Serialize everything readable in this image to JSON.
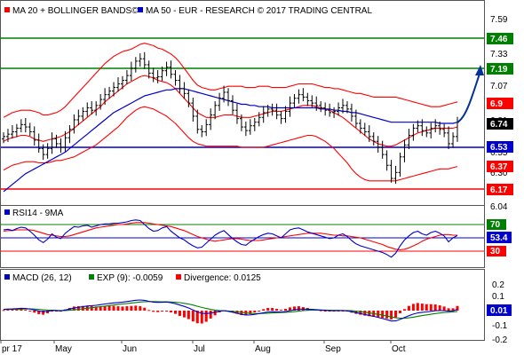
{
  "colors": {
    "price": "#000000",
    "ma20": "#ff0000",
    "bollinger": "#ff0000",
    "ma50": "#0000cc",
    "resistance": "#008000",
    "support_blue": "#0000cc",
    "support_red": "#ff0000",
    "rsi": "#0000cc",
    "rsi_ma": "#ff0000",
    "macd": "#0000cc",
    "signal": "#008000",
    "divergence": "#ff0000",
    "arrow": "#003399"
  },
  "legend": {
    "main": [
      {
        "marker_color": "#ff0000",
        "text": "MA 20 + BOLLINGER BANDS©"
      },
      {
        "marker_color": "#0000cc",
        "text": "MA 50 - EUR - RESEARCH © 2017 TRADING CENTRAL"
      }
    ],
    "rsi": [
      {
        "marker_color": "#0000cc",
        "text": "RSI14 - 9MA"
      }
    ],
    "macd": [
      {
        "marker_color": "#0000cc",
        "text": "MACD (26, 12)"
      },
      {
        "marker_color": "#008000",
        "text": "EXP (9): -0.0059"
      },
      {
        "marker_color": "#ff0000",
        "text": "Divergence: 0.0125"
      }
    ]
  },
  "chart_data": [
    {
      "type": "candlestick",
      "panel": "price",
      "x_labels": [
        "pr 17",
        "May",
        "Jun",
        "Jul",
        "Aug",
        "Sep",
        "Oct"
      ],
      "y_ticks": [
        "7.59",
        "7.33",
        "7.07",
        "6.81",
        "6.55",
        "6.30",
        "6.04"
      ],
      "ylim": [
        6.04,
        7.62
      ],
      "levels": [
        {
          "value": 7.46,
          "label": "7.46",
          "color": "#008000",
          "badge_bg": "#008000"
        },
        {
          "value": 7.19,
          "label": "7.19",
          "color": "#008000",
          "badge_bg": "#008000"
        },
        {
          "value": 6.53,
          "label": "6.53",
          "color": "#0000cc",
          "badge_bg": "#0000cc"
        },
        {
          "value": 6.17,
          "label": "6.17",
          "color": "#ff0000",
          "badge_bg": "#ff0000"
        }
      ],
      "markers": [
        {
          "value": 6.9,
          "label": "6.9",
          "badge_bg": "#ff0000"
        },
        {
          "value": 6.74,
          "label": "6.74",
          "badge_bg": "#000000"
        },
        {
          "value": 6.37,
          "label": "6.37",
          "badge_bg": "#ff0000"
        }
      ],
      "close": [
        6.62,
        6.64,
        6.66,
        6.69,
        6.72,
        6.7,
        6.66,
        6.59,
        6.52,
        6.47,
        6.52,
        6.6,
        6.56,
        6.53,
        6.61,
        6.68,
        6.76,
        6.79,
        6.83,
        6.86,
        6.84,
        6.88,
        6.93,
        6.97,
        7.0,
        7.03,
        7.06,
        7.09,
        7.13,
        7.19,
        7.25,
        7.27,
        7.22,
        7.15,
        7.11,
        7.12,
        7.17,
        7.2,
        7.14,
        7.09,
        7.02,
        6.98,
        6.9,
        6.79,
        6.68,
        6.66,
        6.72,
        6.8,
        6.88,
        6.94,
        6.99,
        6.92,
        6.84,
        6.77,
        6.7,
        6.67,
        6.71,
        6.74,
        6.78,
        6.82,
        6.85,
        6.84,
        6.8,
        6.77,
        6.83,
        6.9,
        6.94,
        6.97,
        6.95,
        6.92,
        6.9,
        6.88,
        6.86,
        6.84,
        6.82,
        6.83,
        6.86,
        6.88,
        6.85,
        6.79,
        6.73,
        6.69,
        6.66,
        6.62,
        6.58,
        6.53,
        6.47,
        6.38,
        6.27,
        6.32,
        6.45,
        6.55,
        6.63,
        6.69,
        6.71,
        6.67,
        6.65,
        6.69,
        6.71,
        6.68,
        6.65,
        6.56,
        6.62,
        6.74
      ],
      "ma20": [
        6.58,
        6.6,
        6.61,
        6.62,
        6.63,
        6.63,
        6.62,
        6.6,
        6.59,
        6.58,
        6.59,
        6.6,
        6.61,
        6.62,
        6.64,
        6.66,
        6.69,
        6.72,
        6.75,
        6.78,
        6.81,
        6.84,
        6.87,
        6.91,
        6.94,
        6.97,
        7.0,
        7.03,
        7.06,
        7.08,
        7.1,
        7.12,
        7.13,
        7.12,
        7.11,
        7.09,
        7.08,
        7.07,
        7.05,
        7.02,
        6.98,
        6.94,
        6.9,
        6.86,
        6.82,
        6.8,
        6.78,
        6.78,
        6.78,
        6.79,
        6.8,
        6.8,
        6.8,
        6.79,
        6.78,
        6.78,
        6.78,
        6.79,
        6.8,
        6.81,
        6.82,
        6.83,
        6.83,
        6.83,
        6.84,
        6.85,
        6.86,
        6.87,
        6.88,
        6.88,
        6.88,
        6.87,
        6.86,
        6.85,
        6.84,
        6.82,
        6.8,
        6.78,
        6.75,
        6.72,
        6.69,
        6.66,
        6.63,
        6.6,
        6.58,
        6.56,
        6.55,
        6.54,
        6.54,
        6.55,
        6.57,
        6.59,
        6.61,
        6.63,
        6.65,
        6.66,
        6.67,
        6.68,
        6.69,
        6.69,
        6.69,
        6.69,
        6.69,
        6.7
      ],
      "bb_upper": [
        6.78,
        6.8,
        6.82,
        6.83,
        6.84,
        6.84,
        6.84,
        6.83,
        6.82,
        6.8,
        6.8,
        6.81,
        6.82,
        6.84,
        6.87,
        6.91,
        6.95,
        6.99,
        7.03,
        7.07,
        7.11,
        7.15,
        7.19,
        7.23,
        7.26,
        7.29,
        7.31,
        7.33,
        7.34,
        7.35,
        7.37,
        7.39,
        7.4,
        7.39,
        7.38,
        7.36,
        7.35,
        7.33,
        7.31,
        7.28,
        7.24,
        7.19,
        7.14,
        7.09,
        7.05,
        7.03,
        7.02,
        7.01,
        7.01,
        7.02,
        7.03,
        7.04,
        7.04,
        7.04,
        7.04,
        7.03,
        7.03,
        7.03,
        7.04,
        7.04,
        7.04,
        7.03,
        7.03,
        7.03,
        7.03,
        7.04,
        7.05,
        7.06,
        7.06,
        7.06,
        7.06,
        7.05,
        7.04,
        7.03,
        7.03,
        7.02,
        7.02,
        7.01,
        7.0,
        6.99,
        6.98,
        6.98,
        6.97,
        6.96,
        6.95,
        6.95,
        6.95,
        6.95,
        6.95,
        6.95,
        6.94,
        6.93,
        6.92,
        6.91,
        6.9,
        6.89,
        6.88,
        6.87,
        6.87,
        6.87,
        6.88,
        6.89,
        6.9,
        6.91
      ],
      "bb_lower": [
        6.34,
        6.36,
        6.38,
        6.39,
        6.4,
        6.41,
        6.41,
        6.41,
        6.4,
        6.4,
        6.4,
        6.41,
        6.42,
        6.42,
        6.43,
        6.44,
        6.45,
        6.47,
        6.49,
        6.51,
        6.53,
        6.55,
        6.58,
        6.61,
        6.64,
        6.67,
        6.7,
        6.74,
        6.78,
        6.81,
        6.84,
        6.86,
        6.87,
        6.86,
        6.85,
        6.83,
        6.81,
        6.79,
        6.76,
        6.73,
        6.69,
        6.65,
        6.61,
        6.58,
        6.56,
        6.55,
        6.54,
        6.54,
        6.54,
        6.54,
        6.54,
        6.54,
        6.54,
        6.54,
        6.53,
        6.53,
        6.53,
        6.53,
        6.53,
        6.53,
        6.54,
        6.55,
        6.56,
        6.57,
        6.58,
        6.59,
        6.6,
        6.61,
        6.62,
        6.63,
        6.63,
        6.62,
        6.6,
        6.58,
        6.55,
        6.52,
        6.48,
        6.44,
        6.4,
        6.35,
        6.31,
        6.28,
        6.26,
        6.25,
        6.25,
        6.25,
        6.25,
        6.25,
        6.25,
        6.25,
        6.26,
        6.27,
        6.28,
        6.29,
        6.3,
        6.31,
        6.32,
        6.33,
        6.34,
        6.35,
        6.35,
        6.35,
        6.36,
        6.37
      ],
      "ma50": [
        6.16,
        6.19,
        6.22,
        6.25,
        6.28,
        6.31,
        6.33,
        6.35,
        6.37,
        6.39,
        6.41,
        6.43,
        6.45,
        6.47,
        6.49,
        6.52,
        6.55,
        6.58,
        6.61,
        6.64,
        6.67,
        6.7,
        6.73,
        6.76,
        6.79,
        6.82,
        6.84,
        6.86,
        6.88,
        6.9,
        6.92,
        6.94,
        6.96,
        6.97,
        6.98,
        6.99,
        7.0,
        7.01,
        7.01,
        7.02,
        7.02,
        7.02,
        7.01,
        7.0,
        6.99,
        6.98,
        6.97,
        6.96,
        6.95,
        6.94,
        6.93,
        6.92,
        6.91,
        6.9,
        6.89,
        6.89,
        6.88,
        6.88,
        6.87,
        6.87,
        6.87,
        6.86,
        6.86,
        6.86,
        6.86,
        6.86,
        6.86,
        6.86,
        6.86,
        6.86,
        6.86,
        6.86,
        6.85,
        6.85,
        6.85,
        6.84,
        6.84,
        6.83,
        6.83,
        6.82,
        6.82,
        6.81,
        6.8,
        6.79,
        6.78,
        6.77,
        6.76,
        6.75,
        6.74,
        6.74,
        6.74,
        6.74,
        6.74,
        6.74,
        6.74,
        6.74,
        6.74,
        6.74,
        6.74,
        6.73,
        6.73,
        6.73,
        6.73,
        6.74
      ],
      "forecast_arrow": {
        "from": 6.74,
        "to": 7.19
      },
      "current_label": "6.74"
    },
    {
      "type": "line",
      "panel": "rsi",
      "y_ticks": [
        "70",
        "30"
      ],
      "ylim": [
        13,
        87
      ],
      "levels": [
        {
          "value": 70,
          "label": "70",
          "color": "#008000",
          "badge_bg": "#008000"
        },
        {
          "value": 53.4,
          "label": "53.4",
          "color": "#0000cc",
          "badge_bg": "#0000cc"
        },
        {
          "value": 30,
          "label": "30",
          "color": "#ff0000",
          "badge_bg": "#ff0000"
        }
      ],
      "rsi": [
        62,
        63,
        61,
        64,
        66,
        65,
        60,
        54,
        47,
        43,
        48,
        56,
        51,
        49,
        57,
        62,
        67,
        66,
        68,
        69,
        66,
        68,
        70,
        71,
        71,
        72,
        72,
        73,
        74,
        76,
        77,
        76,
        70,
        64,
        60,
        61,
        65,
        67,
        60,
        55,
        50,
        47,
        42,
        38,
        35,
        36,
        42,
        48,
        54,
        58,
        61,
        55,
        49,
        44,
        40,
        39,
        44,
        48,
        52,
        55,
        57,
        56,
        53,
        50,
        56,
        62,
        64,
        65,
        62,
        59,
        57,
        55,
        53,
        51,
        49,
        50,
        54,
        56,
        52,
        46,
        41,
        38,
        36,
        34,
        32,
        30,
        28,
        25,
        21,
        27,
        38,
        47,
        53,
        58,
        60,
        56,
        54,
        58,
        60,
        57,
        53,
        44,
        50,
        53.4
      ],
      "rsi_ma": [
        60,
        61,
        61,
        62,
        62,
        62,
        62,
        61,
        59,
        57,
        55,
        54,
        53,
        52,
        52,
        53,
        55,
        57,
        59,
        61,
        63,
        65,
        66,
        67,
        68,
        69,
        70,
        70,
        71,
        72,
        73,
        73,
        73,
        72,
        71,
        70,
        69,
        68,
        67,
        65,
        63,
        61,
        58,
        55,
        52,
        50,
        48,
        46,
        45,
        46,
        47,
        48,
        49,
        49,
        48,
        47,
        46,
        46,
        46,
        47,
        48,
        49,
        50,
        51,
        52,
        53,
        54,
        55,
        56,
        57,
        57,
        57,
        57,
        56,
        55,
        54,
        54,
        53,
        53,
        52,
        51,
        50,
        48,
        46,
        44,
        42,
        40,
        37,
        35,
        33,
        32,
        33,
        35,
        38,
        41,
        45,
        48,
        50,
        52,
        54,
        55,
        55,
        54,
        54
      ],
      "label": "53.4"
    },
    {
      "type": "line+bar",
      "panel": "macd",
      "y_ticks": [
        "0.2",
        "0.1",
        "0",
        "-0.1",
        "-0.2"
      ],
      "ylim": [
        -0.21,
        0.23
      ],
      "current_badge": {
        "value": 0.01,
        "label": "0.01",
        "badge_bg": "#0000cc"
      },
      "macd": [
        0.01,
        0.012,
        0.013,
        0.015,
        0.017,
        0.016,
        0.012,
        0.005,
        -0.002,
        -0.008,
        -0.005,
        0.002,
        0.0,
        -0.002,
        0.005,
        0.012,
        0.02,
        0.025,
        0.03,
        0.035,
        0.037,
        0.04,
        0.045,
        0.05,
        0.054,
        0.058,
        0.061,
        0.064,
        0.068,
        0.073,
        0.078,
        0.08,
        0.077,
        0.07,
        0.064,
        0.062,
        0.063,
        0.065,
        0.059,
        0.052,
        0.042,
        0.032,
        0.02,
        0.005,
        -0.01,
        -0.02,
        -0.022,
        -0.018,
        -0.012,
        -0.005,
        0.0,
        -0.005,
        -0.012,
        -0.02,
        -0.028,
        -0.033,
        -0.032,
        -0.028,
        -0.022,
        -0.016,
        -0.01,
        -0.008,
        -0.009,
        -0.011,
        -0.007,
        0.0,
        0.006,
        0.011,
        0.012,
        0.011,
        0.009,
        0.007,
        0.005,
        0.002,
        0.0,
        -0.001,
        0.0,
        0.001,
        -0.002,
        -0.008,
        -0.015,
        -0.022,
        -0.029,
        -0.036,
        -0.043,
        -0.051,
        -0.059,
        -0.068,
        -0.078,
        -0.077,
        -0.066,
        -0.052,
        -0.038,
        -0.026,
        -0.017,
        -0.013,
        -0.01,
        -0.005,
        -0.001,
        0.0,
        0.0,
        -0.004,
        -0.002,
        0.01
      ],
      "signal": [
        0.008,
        0.009,
        0.01,
        0.011,
        0.012,
        0.013,
        0.013,
        0.012,
        0.01,
        0.006,
        0.004,
        0.003,
        0.002,
        0.001,
        0.001,
        0.003,
        0.006,
        0.01,
        0.014,
        0.018,
        0.022,
        0.026,
        0.03,
        0.034,
        0.038,
        0.042,
        0.046,
        0.05,
        0.053,
        0.057,
        0.061,
        0.065,
        0.067,
        0.068,
        0.068,
        0.067,
        0.066,
        0.066,
        0.065,
        0.063,
        0.06,
        0.055,
        0.049,
        0.042,
        0.033,
        0.024,
        0.016,
        0.009,
        0.004,
        0.001,
        -0.001,
        -0.003,
        -0.006,
        -0.009,
        -0.013,
        -0.017,
        -0.02,
        -0.022,
        -0.022,
        -0.021,
        -0.019,
        -0.017,
        -0.015,
        -0.014,
        -0.013,
        -0.011,
        -0.008,
        -0.004,
        0.0,
        0.002,
        0.004,
        0.004,
        0.004,
        0.004,
        0.003,
        0.002,
        0.002,
        0.001,
        0.001,
        -0.001,
        -0.004,
        -0.008,
        -0.012,
        -0.017,
        -0.022,
        -0.028,
        -0.034,
        -0.041,
        -0.048,
        -0.054,
        -0.057,
        -0.057,
        -0.054,
        -0.049,
        -0.043,
        -0.037,
        -0.032,
        -0.027,
        -0.022,
        -0.018,
        -0.014,
        -0.012,
        -0.01,
        -0.0059
      ],
      "divergence_label": "0.0125"
    }
  ]
}
